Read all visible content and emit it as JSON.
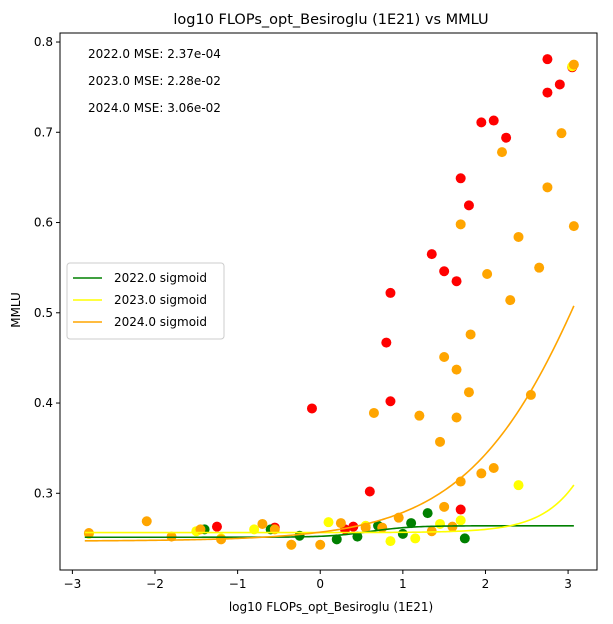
{
  "chart_data": {
    "type": "scatter",
    "title": "log10 FLOPs_opt_Besiroglu (1E21) vs MMLU",
    "xlabel": "log10 FLOPs_opt_Besiroglu (1E21)",
    "ylabel": "MMLU",
    "xlim": [
      -3.15,
      3.35
    ],
    "ylim": [
      0.215,
      0.81
    ],
    "xticks": [
      -3,
      -2,
      -1,
      0,
      1,
      2,
      3
    ],
    "yticks": [
      0.3,
      0.4,
      0.5,
      0.6,
      0.7,
      0.8
    ],
    "xtick_labels": [
      "−3",
      "−2",
      "−1",
      "0",
      "1",
      "2",
      "3"
    ],
    "ytick_labels": [
      "0.3",
      "0.4",
      "0.5",
      "0.6",
      "0.7",
      "0.8"
    ],
    "grid": false,
    "legend_position": "center-left",
    "annotations": [
      "2022.0 MSE: 2.37e-04",
      "2023.0 MSE: 2.28e-02",
      "2024.0 MSE: 3.06e-02"
    ],
    "scatter_series": [
      {
        "color": "#ff0000",
        "points": [
          [
            -1.25,
            0.263
          ],
          [
            -0.55,
            0.262
          ],
          [
            -0.1,
            0.394
          ],
          [
            0.4,
            0.263
          ],
          [
            0.6,
            0.302
          ],
          [
            0.8,
            0.467
          ],
          [
            0.85,
            0.522
          ],
          [
            0.85,
            0.402
          ],
          [
            1.35,
            0.565
          ],
          [
            1.5,
            0.546
          ],
          [
            1.65,
            0.535
          ],
          [
            1.7,
            0.649
          ],
          [
            1.8,
            0.619
          ],
          [
            1.95,
            0.711
          ],
          [
            2.1,
            0.713
          ],
          [
            2.25,
            0.694
          ],
          [
            2.75,
            0.781
          ],
          [
            2.75,
            0.744
          ],
          [
            2.9,
            0.753
          ],
          [
            3.05,
            0.772
          ],
          [
            1.7,
            0.282
          ],
          [
            0.3,
            0.26
          ]
        ]
      },
      {
        "color": "#008000",
        "points": [
          [
            -1.4,
            0.26
          ],
          [
            -0.25,
            0.253
          ],
          [
            0.2,
            0.249
          ],
          [
            0.45,
            0.252
          ],
          [
            0.7,
            0.264
          ],
          [
            1.0,
            0.255
          ],
          [
            1.1,
            0.267
          ],
          [
            1.3,
            0.278
          ],
          [
            1.75,
            0.25
          ],
          [
            -0.6,
            0.26
          ]
        ]
      },
      {
        "color": "#ffff00",
        "points": [
          [
            -2.8,
            0.255
          ],
          [
            -1.5,
            0.258
          ],
          [
            -0.8,
            0.26
          ],
          [
            -0.35,
            0.243
          ],
          [
            0.1,
            0.268
          ],
          [
            0.55,
            0.264
          ],
          [
            0.85,
            0.247
          ],
          [
            1.15,
            0.25
          ],
          [
            1.45,
            0.266
          ],
          [
            1.7,
            0.27
          ],
          [
            2.4,
            0.309
          ],
          [
            3.05,
            0.773
          ],
          [
            -1.2,
            0.25
          ]
        ]
      },
      {
        "color": "#ffa500",
        "points": [
          [
            -2.8,
            0.256
          ],
          [
            -2.1,
            0.269
          ],
          [
            -1.8,
            0.252
          ],
          [
            -1.45,
            0.26
          ],
          [
            -1.2,
            0.249
          ],
          [
            -0.7,
            0.266
          ],
          [
            -0.55,
            0.26
          ],
          [
            -0.35,
            0.243
          ],
          [
            0.0,
            0.243
          ],
          [
            0.25,
            0.267
          ],
          [
            0.55,
            0.262
          ],
          [
            0.65,
            0.389
          ],
          [
            0.95,
            0.273
          ],
          [
            1.2,
            0.386
          ],
          [
            1.35,
            0.258
          ],
          [
            1.45,
            0.357
          ],
          [
            1.5,
            0.285
          ],
          [
            1.5,
            0.451
          ],
          [
            1.65,
            0.384
          ],
          [
            1.65,
            0.437
          ],
          [
            1.7,
            0.313
          ],
          [
            1.7,
            0.598
          ],
          [
            1.8,
            0.412
          ],
          [
            1.82,
            0.476
          ],
          [
            1.95,
            0.322
          ],
          [
            2.02,
            0.543
          ],
          [
            2.1,
            0.328
          ],
          [
            2.2,
            0.678
          ],
          [
            2.3,
            0.514
          ],
          [
            2.4,
            0.584
          ],
          [
            2.55,
            0.409
          ],
          [
            2.65,
            0.55
          ],
          [
            2.75,
            0.639
          ],
          [
            2.92,
            0.699
          ],
          [
            3.07,
            0.596
          ],
          [
            3.07,
            0.775
          ],
          [
            0.75,
            0.262
          ],
          [
            1.6,
            0.263
          ]
        ]
      }
    ],
    "series": [
      {
        "name": "2022.0 sigmoid",
        "color": "#008000",
        "fit": {
          "low": 0.2513,
          "high": 0.264,
          "k": 4.0,
          "x0": 0.6
        }
      },
      {
        "name": "2023.0 sigmoid",
        "color": "#ffff00",
        "fit": {
          "low": 0.2565,
          "high": 1.0,
          "k": 2.6,
          "x0": 4.06
        }
      },
      {
        "name": "2024.0 sigmoid",
        "color": "#ffa500",
        "fit": {
          "low": 0.247,
          "high": 1.0,
          "k": 1.2,
          "x0": 3.6
        }
      }
    ]
  }
}
